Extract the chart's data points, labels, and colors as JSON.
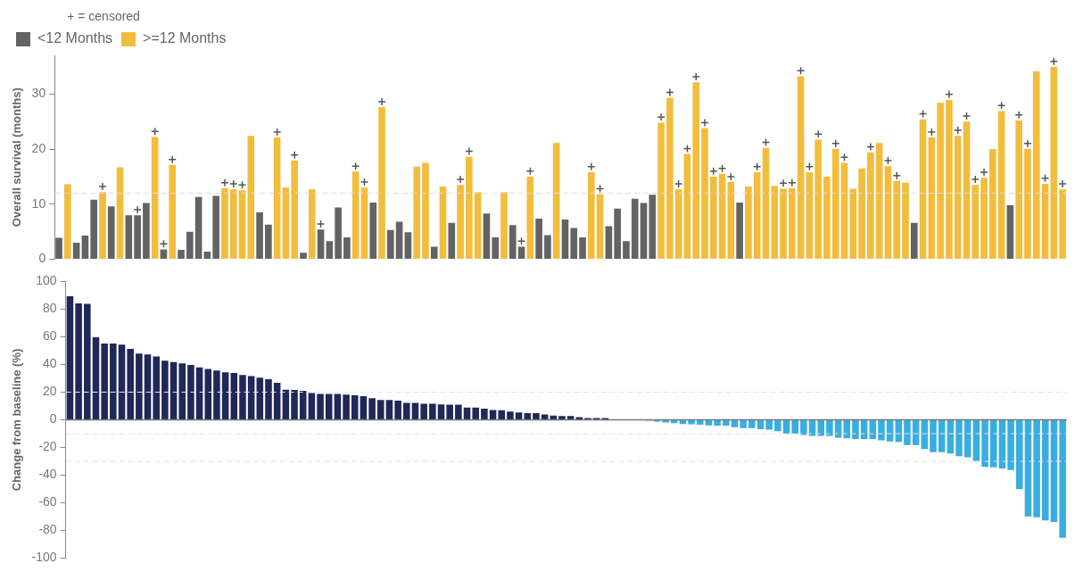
{
  "chart_data": [
    {
      "type": "bar",
      "ylabel": "Overall survival (months)",
      "annotations": [
        "+ = censored"
      ],
      "legend": "top left",
      "tick_labels": "y",
      "ylim": [
        0,
        37
      ],
      "yticks": [
        0,
        10,
        20,
        30
      ],
      "categories": [
        null,
        null,
        null,
        null,
        null,
        null,
        null,
        null,
        null,
        null,
        null,
        null,
        null,
        null,
        null,
        null,
        null,
        null,
        null,
        null,
        null,
        null,
        null,
        null,
        null,
        null,
        null,
        null,
        null,
        null,
        null,
        null,
        null,
        null,
        null,
        null,
        null,
        null,
        null,
        null,
        null,
        null,
        null,
        null,
        null,
        null,
        null,
        null,
        null,
        null,
        null,
        null,
        null,
        null,
        null,
        null,
        null,
        null,
        null,
        null,
        null,
        null,
        null,
        null,
        null,
        null,
        null,
        null,
        null,
        null,
        null,
        null,
        null,
        null,
        null,
        null,
        null,
        null,
        null,
        null,
        null,
        null,
        null,
        null,
        null,
        null,
        null,
        null,
        null,
        null,
        null,
        null,
        null,
        null,
        null,
        null,
        null,
        null,
        null,
        null,
        null,
        null,
        null,
        null,
        null,
        null,
        null,
        null,
        null,
        null,
        null,
        null,
        null,
        null,
        null,
        null
      ],
      "ref_lines": [
        {
          "axis": "y",
          "value": 12,
          "color": "#dddddd",
          "line_style": "dashed"
        }
      ],
      "series": [
        {
          "name": "<12 Months",
          "color": "#636363",
          "values": [
            3.9,
            null,
            3.0,
            4.3,
            10.8,
            null,
            9.6,
            null,
            8.0,
            8.0,
            10.2,
            null,
            1.8,
            null,
            1.7,
            5.0,
            11.3,
            1.4,
            11.5,
            null,
            null,
            null,
            null,
            8.5,
            6.3,
            null,
            null,
            null,
            1.2,
            null,
            5.4,
            3.3,
            9.4,
            4.0,
            null,
            null,
            10.3,
            null,
            5.3,
            6.8,
            4.9,
            null,
            null,
            2.3,
            null,
            6.6,
            null,
            null,
            null,
            8.3,
            4.0,
            null,
            6.2,
            2.3,
            null,
            7.4,
            4.4,
            null,
            7.2,
            5.7,
            4.0,
            null,
            null,
            6.0,
            9.2,
            3.3,
            11.0,
            10.2,
            11.7,
            null,
            null,
            null,
            null,
            null,
            null,
            null,
            null,
            null,
            10.3,
            null,
            null,
            null,
            null,
            null,
            null,
            null,
            null,
            null,
            null,
            null,
            null,
            null,
            null,
            null,
            null,
            null,
            null,
            null,
            6.6,
            null,
            null,
            null,
            null,
            null,
            null,
            null,
            null,
            null,
            null,
            9.8,
            null,
            null,
            null,
            null,
            null,
            null
          ]
        },
        {
          "name": ">=12 Months",
          "color": "#f2bd3c",
          "values": [
            null,
            13.6,
            null,
            null,
            null,
            12.2,
            null,
            16.7,
            null,
            null,
            null,
            22.2,
            null,
            17.1,
            null,
            null,
            null,
            null,
            null,
            12.9,
            12.7,
            12.5,
            22.4,
            null,
            null,
            22.1,
            13.0,
            17.9,
            null,
            12.7,
            null,
            null,
            null,
            null,
            15.9,
            13.0,
            null,
            27.6,
            null,
            null,
            null,
            16.8,
            17.5,
            null,
            13.2,
            null,
            13.5,
            18.6,
            12.2,
            null,
            null,
            12.2,
            null,
            null,
            15.0,
            null,
            null,
            21.1,
            null,
            null,
            null,
            15.8,
            11.8,
            null,
            null,
            null,
            null,
            null,
            null,
            24.8,
            29.3,
            12.7,
            19.1,
            32.1,
            23.8,
            15.0,
            15.5,
            14.0,
            null,
            13.2,
            15.8,
            20.2,
            13.3,
            12.8,
            12.9,
            33.2,
            15.8,
            21.7,
            15.0,
            20.0,
            17.5,
            12.8,
            16.5,
            19.4,
            21.1,
            16.9,
            14.2,
            13.9,
            null,
            25.4,
            22.1,
            28.4,
            28.9,
            22.4,
            25.0,
            13.5,
            14.8,
            20.0,
            26.9,
            null,
            25.2,
            20.0,
            34.1,
            13.7,
            34.9,
            12.7
          ]
        },
        {
          "type": "scatter",
          "marker": "cross",
          "color": "#555555",
          "values": [
            null,
            null,
            null,
            null,
            null,
            13.2,
            null,
            null,
            null,
            9.0,
            null,
            23.2,
            2.8,
            18.1,
            null,
            null,
            null,
            null,
            null,
            13.9,
            13.7,
            13.5,
            null,
            null,
            null,
            23.1,
            null,
            18.9,
            null,
            null,
            6.4,
            null,
            null,
            null,
            16.9,
            14.0,
            null,
            28.6,
            null,
            null,
            null,
            null,
            null,
            null,
            null,
            null,
            14.5,
            19.6,
            null,
            null,
            null,
            null,
            null,
            3.3,
            16.0,
            null,
            null,
            null,
            null,
            null,
            null,
            16.8,
            12.8,
            null,
            null,
            null,
            null,
            null,
            null,
            25.8,
            30.3,
            13.7,
            20.1,
            33.1,
            24.8,
            16.0,
            16.5,
            15.0,
            null,
            null,
            16.8,
            21.2,
            null,
            13.8,
            13.9,
            34.2,
            16.8,
            22.7,
            null,
            21.0,
            18.5,
            null,
            null,
            20.4,
            null,
            17.9,
            15.2,
            null,
            null,
            26.4,
            23.1,
            null,
            29.9,
            23.4,
            26.0,
            14.5,
            15.8,
            null,
            27.9,
            null,
            26.2,
            21.0,
            null,
            14.7,
            35.9,
            13.7
          ]
        }
      ]
    },
    {
      "type": "bar",
      "ylabel": "Change from baseline (%)",
      "tick_labels": "y",
      "ylim": [
        -100,
        100
      ],
      "yticks": [
        -100,
        -80,
        -60,
        -40,
        -20,
        0,
        20,
        40,
        60,
        80,
        100
      ],
      "categories": [
        null,
        null,
        null,
        null,
        null,
        null,
        null,
        null,
        null,
        null,
        null,
        null,
        null,
        null,
        null,
        null,
        null,
        null,
        null,
        null,
        null,
        null,
        null,
        null,
        null,
        null,
        null,
        null,
        null,
        null,
        null,
        null,
        null,
        null,
        null,
        null,
        null,
        null,
        null,
        null,
        null,
        null,
        null,
        null,
        null,
        null,
        null,
        null,
        null,
        null,
        null,
        null,
        null,
        null,
        null,
        null,
        null,
        null,
        null,
        null,
        null,
        null,
        null,
        null,
        null,
        null,
        null,
        null,
        null,
        null,
        null,
        null,
        null,
        null,
        null,
        null,
        null,
        null,
        null,
        null,
        null,
        null,
        null,
        null,
        null,
        null,
        null,
        null,
        null,
        null,
        null,
        null,
        null,
        null,
        null,
        null,
        null,
        null,
        null,
        null,
        null,
        null,
        null,
        null,
        null,
        null,
        null,
        null,
        null,
        null,
        null,
        null,
        null,
        null,
        null,
        null
      ],
      "ref_lines": [
        {
          "axis": "y",
          "value": 20,
          "color": "#e3e3e3",
          "line_style": "dashed"
        },
        {
          "axis": "y",
          "value": -10,
          "color": "#e3e3e3",
          "line_style": "dashed"
        },
        {
          "axis": "y",
          "value": -30,
          "color": "#e3e3e3",
          "line_style": "dashed"
        }
      ],
      "series": [
        {
          "color": "#1f2858",
          "values": [
            89.3,
            84.2,
            83.8,
            59.6,
            55.1,
            55.1,
            54.4,
            51.3,
            47.8,
            47.3,
            45.8,
            42.7,
            41.8,
            40.7,
            39.6,
            37.8,
            36.7,
            35.6,
            34.4,
            33.8,
            32.4,
            31.6,
            30.4,
            29.3,
            26.7,
            21.8,
            21.6,
            20.9,
            19.3,
            18.7,
            18.7,
            18.7,
            18.2,
            17.8,
            17.1,
            15.6,
            14.4,
            14.4,
            13.8,
            12.2,
            12.2,
            11.6,
            11.6,
            11.1,
            10.9,
            10.9,
            8.9,
            8.9,
            8.0,
            7.1,
            6.9,
            6.0,
            5.3,
            4.9,
            4.9,
            3.8,
            3.1,
            2.7,
            2.7,
            2.0,
            1.3,
            1.3,
            1.3,
            0,
            0,
            0,
            0,
            null,
            null,
            null,
            null,
            null,
            null,
            null,
            null,
            null,
            null,
            null,
            null,
            null,
            null,
            null,
            null,
            null,
            null,
            null,
            null,
            null,
            null,
            null,
            null,
            null,
            null,
            null,
            null,
            null,
            null,
            null,
            null,
            null,
            null,
            null,
            null,
            null,
            null,
            null,
            null,
            null,
            null,
            null,
            null,
            null,
            null,
            null,
            null,
            null
          ]
        },
        {
          "color": "#38ade2",
          "values": [
            null,
            null,
            null,
            null,
            null,
            null,
            null,
            null,
            null,
            null,
            null,
            null,
            null,
            null,
            null,
            null,
            null,
            null,
            null,
            null,
            null,
            null,
            null,
            null,
            null,
            null,
            null,
            null,
            null,
            null,
            null,
            null,
            null,
            null,
            null,
            null,
            null,
            null,
            null,
            null,
            null,
            null,
            null,
            null,
            null,
            null,
            null,
            null,
            null,
            null,
            null,
            null,
            null,
            null,
            null,
            null,
            null,
            null,
            null,
            null,
            null,
            null,
            null,
            null,
            null,
            null,
            null,
            -0.7,
            -1.3,
            -2.0,
            -2.4,
            -3.1,
            -3.3,
            -3.6,
            -4.0,
            -4.2,
            -4.2,
            -5.3,
            -6.0,
            -6.0,
            -6.7,
            -7.1,
            -8.2,
            -10.0,
            -10.0,
            -10.9,
            -11.6,
            -11.6,
            -11.6,
            -12.9,
            -13.3,
            -13.8,
            -13.8,
            -13.8,
            -14.9,
            -15.6,
            -16.0,
            -18.2,
            -18.2,
            -21.1,
            -23.3,
            -23.3,
            -24.4,
            -26.2,
            -27.1,
            -29.8,
            -34.0,
            -34.4,
            -35.1,
            -36.2,
            -50.2,
            -69.8,
            -70.4,
            -72.7,
            -73.8,
            -85.3
          ]
        }
      ]
    }
  ]
}
